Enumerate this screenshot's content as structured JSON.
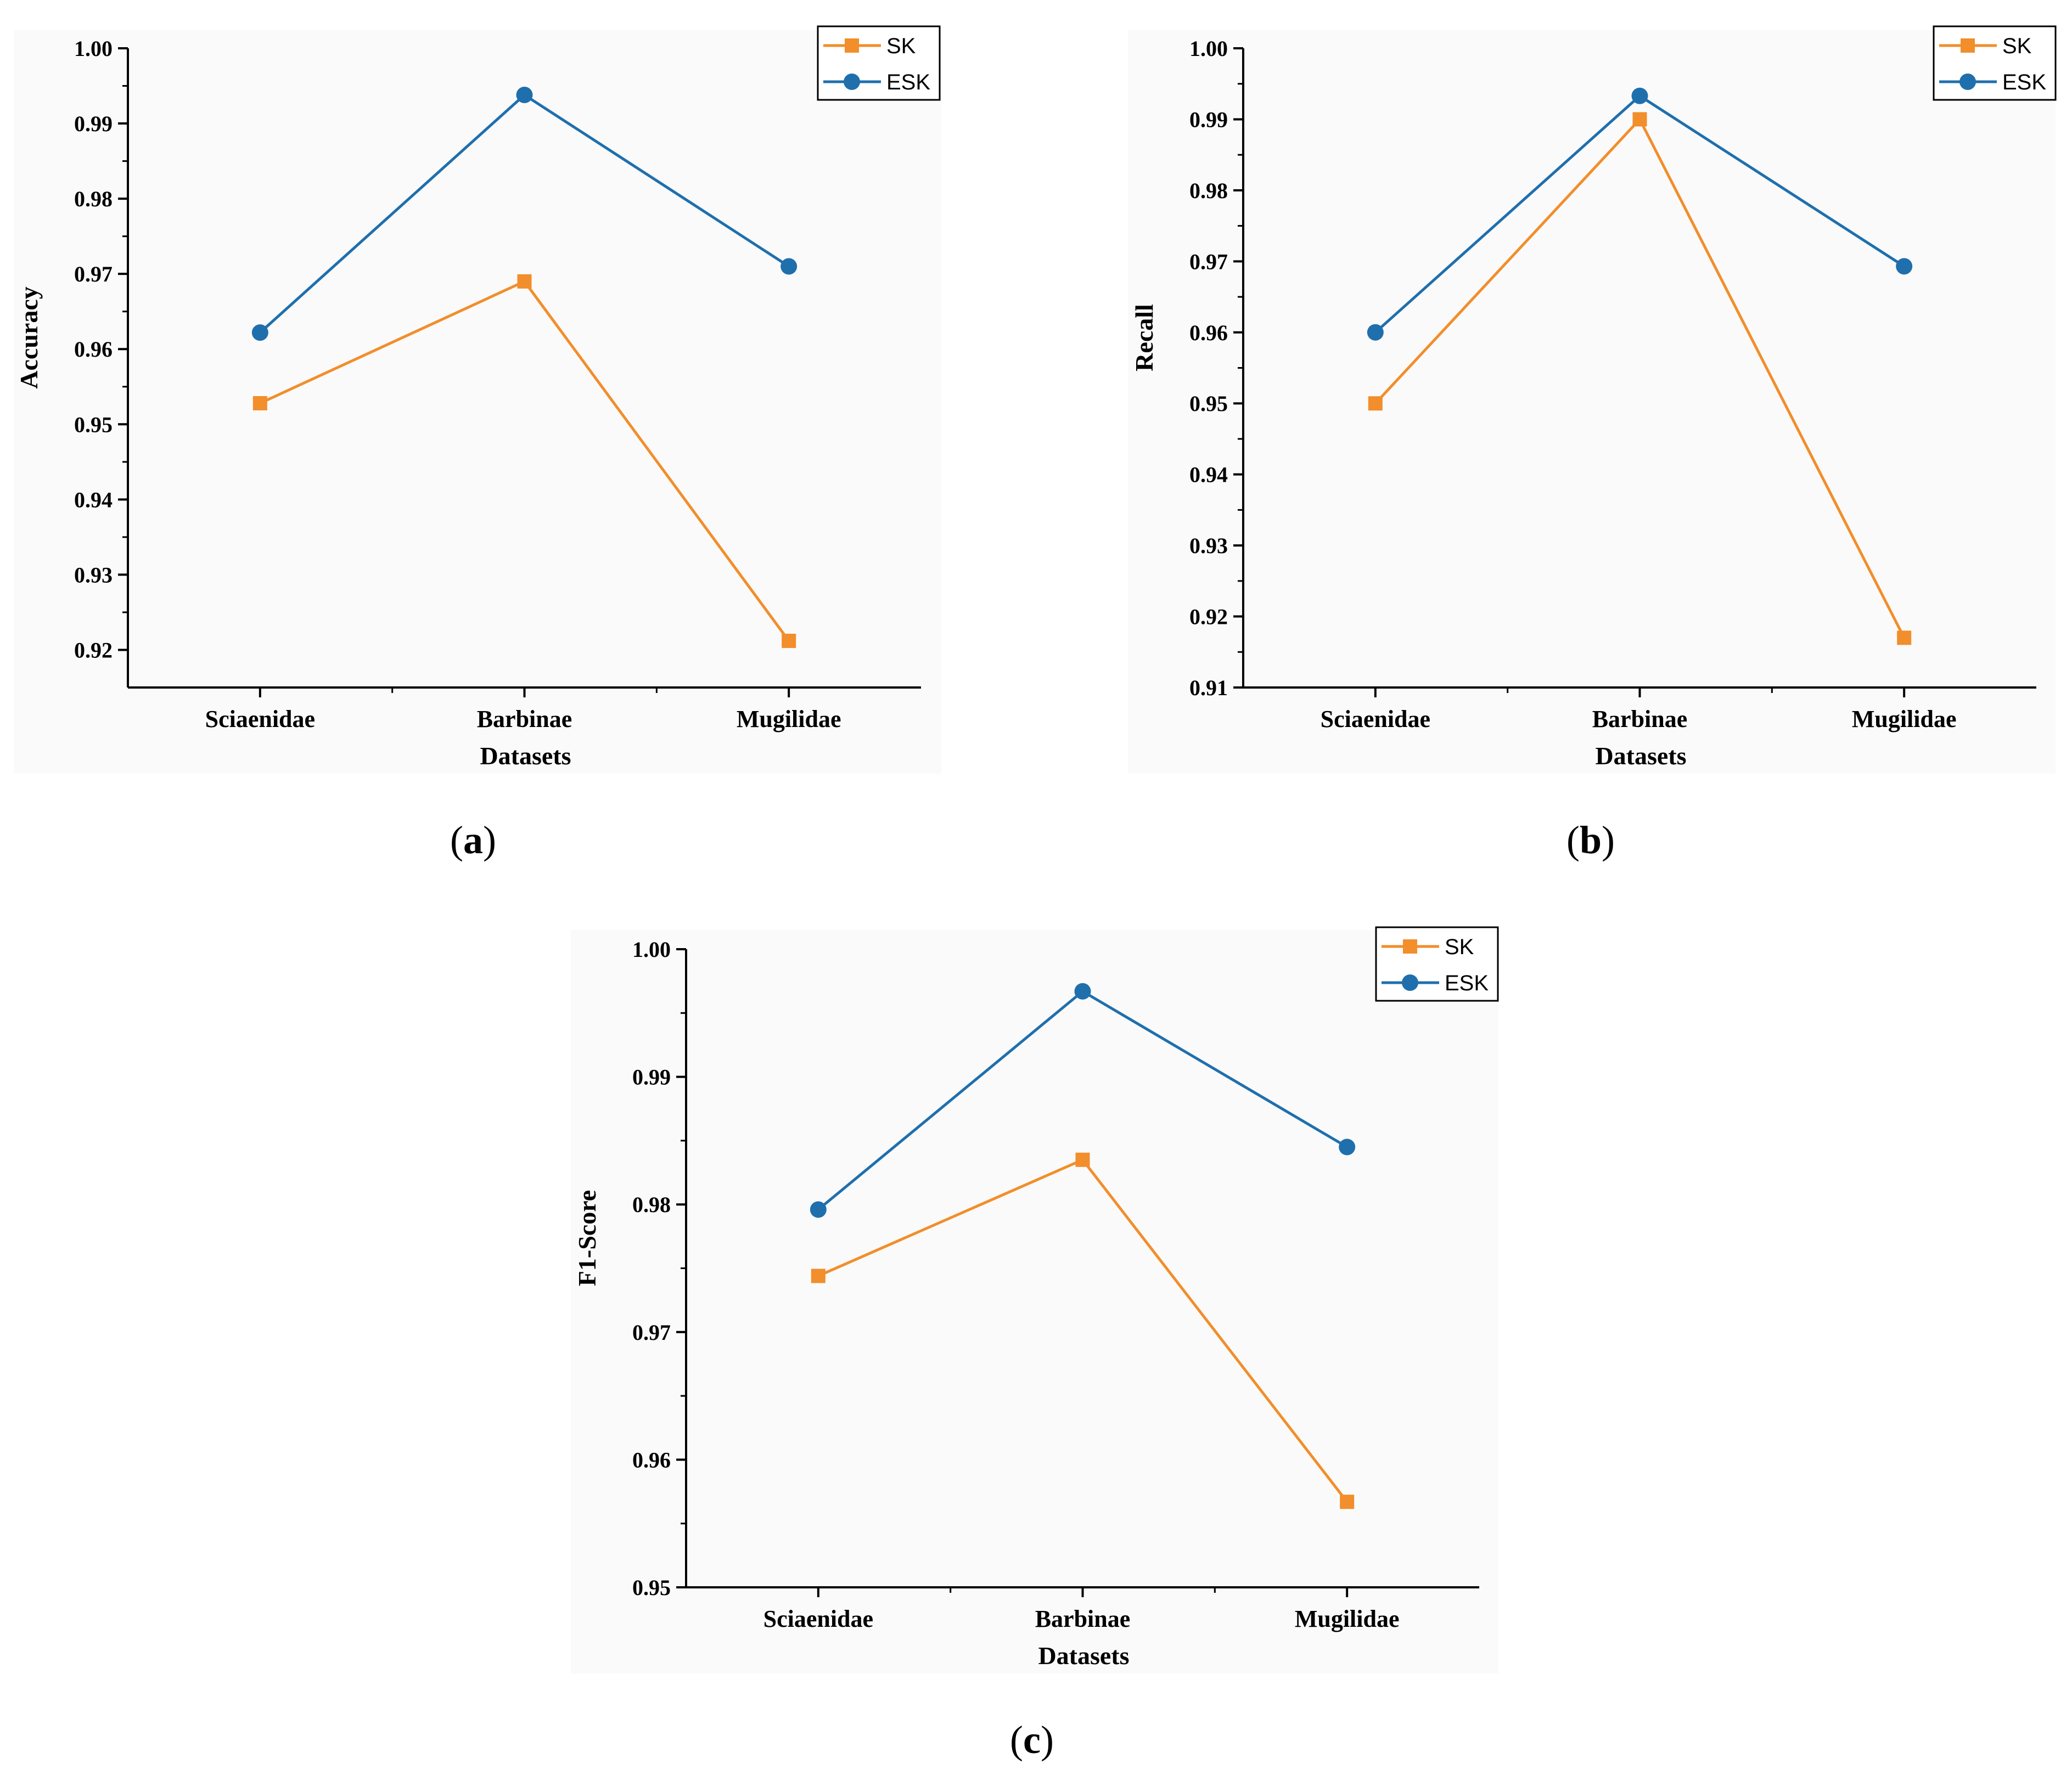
{
  "chart_data": [
    {
      "type": "line",
      "panel_label": "a",
      "categories": [
        "Sciaenidae",
        "Barbinae",
        "Mugilidae"
      ],
      "series": [
        {
          "name": "SK",
          "values": [
            0.9528,
            0.969,
            0.9212
          ],
          "color": "#f28e2b",
          "marker": "square"
        },
        {
          "name": "ESK",
          "values": [
            0.9622,
            0.9938,
            0.971
          ],
          "color": "#1f6fad",
          "marker": "circle"
        }
      ],
      "title": "",
      "xlabel": "Datasets",
      "ylabel": "Accuracy",
      "ylim": [
        0.915,
        1.0
      ],
      "yticks": [
        "0.92",
        "0.93",
        "0.94",
        "0.95",
        "0.96",
        "0.97",
        "0.98",
        "0.99",
        "1.00"
      ],
      "legend": "top-right",
      "grid": false
    },
    {
      "type": "line",
      "panel_label": "b",
      "categories": [
        "Sciaenidae",
        "Barbinae",
        "Mugilidae"
      ],
      "series": [
        {
          "name": "SK",
          "values": [
            0.95,
            0.99,
            0.917
          ],
          "color": "#f28e2b",
          "marker": "square"
        },
        {
          "name": "ESK",
          "values": [
            0.96,
            0.9933,
            0.9693
          ],
          "color": "#1f6fad",
          "marker": "circle"
        }
      ],
      "title": "",
      "xlabel": "Datasets",
      "ylabel": "Recall",
      "ylim": [
        0.91,
        1.0
      ],
      "yticks": [
        "0.91",
        "0.92",
        "0.93",
        "0.94",
        "0.95",
        "0.96",
        "0.97",
        "0.98",
        "0.99",
        "1.00"
      ],
      "legend": "top-right",
      "grid": false
    },
    {
      "type": "line",
      "panel_label": "c",
      "categories": [
        "Sciaenidae",
        "Barbinae",
        "Mugilidae"
      ],
      "series": [
        {
          "name": "SK",
          "values": [
            0.9744,
            0.9835,
            0.9567
          ],
          "color": "#f28e2b",
          "marker": "square"
        },
        {
          "name": "ESK",
          "values": [
            0.9796,
            0.9967,
            0.9845
          ],
          "color": "#1f6fad",
          "marker": "circle"
        }
      ],
      "title": "",
      "xlabel": "Datasets",
      "ylabel": "F1-Score",
      "ylim": [
        0.95,
        1.0
      ],
      "yticks": [
        "0.95",
        "0.96",
        "0.97",
        "0.98",
        "0.99",
        "1.00"
      ],
      "legend": "top-right",
      "grid": false
    }
  ]
}
